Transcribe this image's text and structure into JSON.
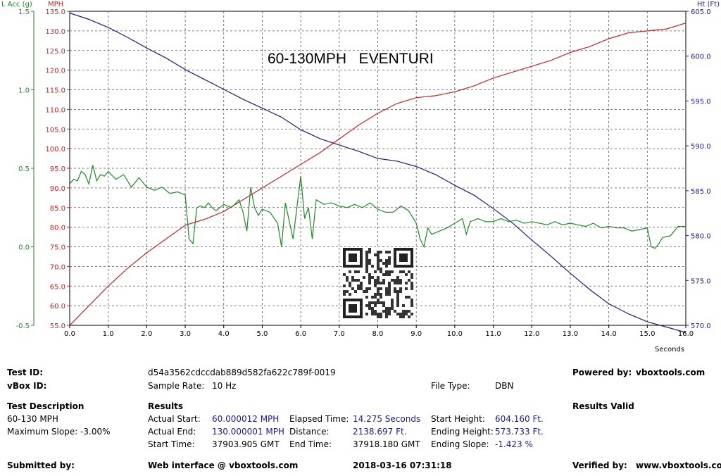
{
  "chart_data": {
    "type": "line",
    "title": "60-130MPH   EVENTURI",
    "xlabel": "Seconds",
    "x_ticks": [
      "0.0",
      "1.0",
      "2.0",
      "3.0",
      "4.0",
      "5.0",
      "6.0",
      "7.0",
      "8.0",
      "9.0",
      "10.0",
      "11.0",
      "12.0",
      "13.0",
      "14.0",
      "15.0",
      "16.0"
    ],
    "xlim": [
      0,
      16
    ],
    "grid": true,
    "axes": {
      "lacc": {
        "label": "L Acc (g)",
        "color": "#22882a",
        "ylim": [
          -0.5,
          1.5
        ],
        "ticks": [
          "-0.5",
          "0.0",
          "0.5",
          "1.0",
          "1.5"
        ]
      },
      "mph": {
        "label": "MPH",
        "color": "#cc2222",
        "ylim": [
          55,
          135
        ],
        "ticks": [
          "55.0",
          "60.0",
          "65.0",
          "70.0",
          "75.0",
          "80.0",
          "85.0",
          "90.0",
          "95.0",
          "100.0",
          "105.0",
          "110.0",
          "115.0",
          "120.0",
          "125.0",
          "130.0",
          "135.0"
        ]
      },
      "ht": {
        "label": "Ht (Ft)",
        "color": "#1a1a8c",
        "ylim": [
          570,
          605
        ],
        "ticks": [
          "570.0",
          "575.0",
          "580.0",
          "585.0",
          "590.0",
          "595.0",
          "600.0",
          "605.0"
        ]
      }
    },
    "series": [
      {
        "axis": "mph",
        "color": "#cc2222",
        "x": [
          0,
          0.5,
          1,
          1.5,
          2,
          2.5,
          3,
          3.5,
          4,
          4.5,
          5,
          5.5,
          6,
          6.5,
          7,
          7.5,
          8,
          8.5,
          9,
          9.5,
          10,
          10.5,
          11,
          11.5,
          12,
          12.5,
          13,
          13.5,
          14,
          14.5,
          15,
          15.5,
          16
        ],
        "values": [
          55,
          60,
          65,
          69.5,
          73.5,
          77,
          80.5,
          82,
          84,
          87,
          90,
          93,
          96,
          99,
          102.5,
          106,
          109,
          111.5,
          113,
          113.5,
          114.5,
          116,
          118,
          119.5,
          121,
          122.5,
          124.5,
          126,
          128,
          129.5,
          130,
          130.5,
          132
        ]
      },
      {
        "axis": "ht",
        "color": "#1a1a8c",
        "x": [
          0,
          0.5,
          1,
          1.5,
          2,
          2.5,
          3,
          3.5,
          4,
          4.5,
          5,
          5.5,
          6,
          6.5,
          7,
          7.5,
          8,
          8.5,
          9,
          9.5,
          10,
          10.5,
          11,
          11.5,
          12,
          12.5,
          13,
          13.5,
          14,
          14.5,
          15,
          15.5,
          16
        ],
        "values": [
          604.8,
          604.1,
          603.2,
          602.1,
          600.9,
          599.8,
          598.5,
          597.4,
          596.3,
          595.2,
          594.2,
          593.2,
          591.8,
          590.8,
          590.1,
          589.4,
          588.6,
          588.3,
          587.7,
          586.8,
          585.6,
          584.5,
          583,
          581.4,
          579.5,
          577.7,
          575.8,
          574,
          572.4,
          571.3,
          570.4,
          569.8,
          569.2
        ]
      },
      {
        "axis": "lacc",
        "color": "#22882a",
        "x": [
          0,
          0.1,
          0.2,
          0.3,
          0.4,
          0.5,
          0.6,
          0.7,
          0.8,
          0.9,
          1.0,
          1.2,
          1.4,
          1.6,
          1.8,
          2.0,
          2.2,
          2.4,
          2.6,
          2.8,
          3.0,
          3.1,
          3.2,
          3.3,
          3.4,
          3.5,
          3.6,
          3.7,
          3.8,
          4.0,
          4.2,
          4.4,
          4.5,
          4.6,
          4.7,
          4.8,
          4.9,
          5.0,
          5.2,
          5.4,
          5.5,
          5.6,
          5.8,
          6.0,
          6.1,
          6.2,
          6.3,
          6.4,
          6.6,
          6.8,
          7.0,
          7.2,
          7.4,
          7.6,
          7.8,
          8.0,
          8.2,
          8.4,
          8.6,
          8.8,
          9.0,
          9.1,
          9.2,
          9.3,
          9.4,
          9.6,
          9.8,
          10.0,
          10.2,
          10.3,
          10.4,
          10.6,
          10.8,
          11.0,
          11.2,
          11.4,
          11.6,
          11.8,
          12.0,
          12.2,
          12.4,
          12.6,
          12.8,
          13.0,
          13.2,
          13.4,
          13.6,
          13.8,
          14.0,
          14.2,
          14.4,
          14.6,
          14.8,
          15.0,
          15.1,
          15.2,
          15.3,
          15.4,
          15.6,
          15.8,
          16.0
        ],
        "values": [
          0.4,
          0.43,
          0.42,
          0.48,
          0.46,
          0.4,
          0.52,
          0.42,
          0.46,
          0.45,
          0.48,
          0.43,
          0.46,
          0.38,
          0.44,
          0.38,
          0.36,
          0.38,
          0.34,
          0.35,
          0.33,
          0.05,
          0.02,
          0.25,
          0.26,
          0.25,
          0.28,
          0.25,
          0.23,
          0.27,
          0.25,
          0.3,
          0.22,
          0.1,
          0.38,
          0.25,
          0.2,
          0.24,
          0.22,
          0.15,
          0.0,
          0.28,
          0.05,
          0.45,
          0.18,
          0.25,
          0.05,
          0.3,
          0.27,
          0.28,
          0.26,
          0.25,
          0.27,
          0.25,
          0.28,
          0.24,
          0.22,
          0.22,
          0.26,
          0.23,
          0.15,
          0.05,
          0.0,
          0.12,
          0.08,
          0.1,
          0.12,
          0.15,
          0.18,
          0.08,
          0.16,
          0.18,
          0.16,
          0.16,
          0.18,
          0.16,
          0.17,
          0.15,
          0.16,
          0.15,
          0.14,
          0.16,
          0.14,
          0.15,
          0.14,
          0.13,
          0.15,
          0.12,
          0.13,
          0.12,
          0.12,
          0.1,
          0.11,
          0.12,
          0.0,
          -0.01,
          0.02,
          0.06,
          0.07,
          0.13,
          0.13
        ]
      }
    ]
  },
  "info": {
    "test_id_label": "Test ID:",
    "test_id_value": "d54a3562cdccdab889d582fa622c789f-0019",
    "powered_label": "Powered by:",
    "powered_value": "vboxtools.com",
    "vbox_id_label": "vBox ID:",
    "sample_rate_label": "Sample Rate:",
    "sample_rate_value": "10 Hz",
    "file_type_label": "File Type:",
    "file_type_value": "DBN",
    "test_desc_label": "Test Description",
    "test_desc_value": "60-130 MPH",
    "max_slope": "Maximum Slope:  -3.00%",
    "results_label": "Results",
    "results_valid": "Results Valid",
    "actual_start_label": "Actual Start:",
    "actual_start_value": "60.000012 MPH",
    "elapsed_label": "Elapsed Time:",
    "elapsed_value": "14.275 Seconds",
    "start_height_label": "Start Height:",
    "start_height_value": "604.160 Ft.",
    "actual_end_label": "Actual End:",
    "actual_end_value": "130.000001 MPH",
    "distance_label": "Distance:",
    "distance_value": "2138.697 Ft.",
    "ending_height_label": "Ending Height:",
    "ending_height_value": "573.733 Ft.",
    "start_time_label": "Start Time:",
    "start_time_value": "37903.905 GMT",
    "end_time_label": "End Time:",
    "end_time_value": "37918.180 GMT",
    "ending_slope_label": "Ending Slope:",
    "ending_slope_value": "-1.423 %",
    "submitted_label": "Submitted by:",
    "web_interface": "Web interface @ vboxtools.com",
    "datetime": "2018-03-16 07:31:18",
    "verified_label": "Verified by:",
    "verified_value": "www.vboxtools.com"
  }
}
